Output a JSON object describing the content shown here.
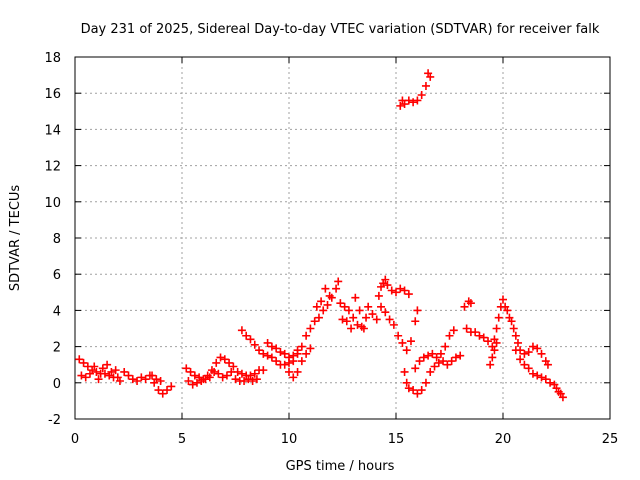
{
  "chart_data": {
    "type": "scatter",
    "title": "Day 231 of 2025, Sidereal Day-to-day VTEC variation (SDTVAR) for receiver falk",
    "xlabel": "GPS time / hours",
    "ylabel": "SDTVAR / TECUs",
    "xlim": [
      0,
      25
    ],
    "ylim": [
      -2,
      18
    ],
    "xticks": [
      0,
      5,
      10,
      15,
      20,
      25
    ],
    "yticks": [
      -2,
      0,
      2,
      4,
      6,
      8,
      10,
      12,
      14,
      16,
      18
    ],
    "grid": true,
    "marker": "plus",
    "color": "#ff0000",
    "series": [
      {
        "name": "SDTVAR",
        "points": [
          [
            0.2,
            1.3
          ],
          [
            0.4,
            1.1
          ],
          [
            0.6,
            0.9
          ],
          [
            0.8,
            0.7
          ],
          [
            1.0,
            0.6
          ],
          [
            1.2,
            0.5
          ],
          [
            1.4,
            0.5
          ],
          [
            1.6,
            0.4
          ],
          [
            1.8,
            0.3
          ],
          [
            2.0,
            0.3
          ],
          [
            0.3,
            0.4
          ],
          [
            0.5,
            0.3
          ],
          [
            0.7,
            0.5
          ],
          [
            0.9,
            0.9
          ],
          [
            1.1,
            0.2
          ],
          [
            1.3,
            0.8
          ],
          [
            1.5,
            1.0
          ],
          [
            1.7,
            0.6
          ],
          [
            1.9,
            0.7
          ],
          [
            2.1,
            0.1
          ],
          [
            2.3,
            0.6
          ],
          [
            2.5,
            0.4
          ],
          [
            2.7,
            0.2
          ],
          [
            2.9,
            0.1
          ],
          [
            3.1,
            0.3
          ],
          [
            3.3,
            0.2
          ],
          [
            3.5,
            0.4
          ],
          [
            3.7,
            0.0
          ],
          [
            3.9,
            -0.4
          ],
          [
            4.1,
            -0.6
          ],
          [
            4.3,
            -0.4
          ],
          [
            4.5,
            -0.2
          ],
          [
            3.6,
            0.4
          ],
          [
            3.8,
            0.2
          ],
          [
            4.0,
            0.1
          ],
          [
            5.2,
            0.8
          ],
          [
            5.4,
            0.6
          ],
          [
            5.6,
            0.4
          ],
          [
            5.8,
            0.3
          ],
          [
            6.0,
            0.2
          ],
          [
            6.2,
            0.4
          ],
          [
            6.4,
            0.7
          ],
          [
            6.6,
            1.1
          ],
          [
            6.8,
            1.4
          ],
          [
            7.0,
            1.3
          ],
          [
            7.2,
            1.1
          ],
          [
            7.4,
            0.9
          ],
          [
            7.6,
            0.6
          ],
          [
            7.8,
            0.5
          ],
          [
            8.0,
            0.4
          ],
          [
            8.2,
            0.4
          ],
          [
            8.4,
            0.5
          ],
          [
            8.6,
            0.7
          ],
          [
            8.8,
            0.7
          ],
          [
            5.3,
            0.1
          ],
          [
            5.5,
            -0.1
          ],
          [
            5.7,
            0.0
          ],
          [
            5.9,
            0.1
          ],
          [
            6.1,
            0.2
          ],
          [
            6.3,
            0.3
          ],
          [
            6.5,
            0.6
          ],
          [
            6.7,
            0.5
          ],
          [
            6.9,
            0.3
          ],
          [
            7.1,
            0.4
          ],
          [
            7.3,
            0.6
          ],
          [
            7.5,
            0.2
          ],
          [
            7.7,
            0.1
          ],
          [
            7.9,
            0.1
          ],
          [
            8.1,
            0.2
          ],
          [
            8.3,
            0.1
          ],
          [
            8.5,
            0.2
          ],
          [
            7.8,
            2.9
          ],
          [
            8.0,
            2.6
          ],
          [
            8.2,
            2.4
          ],
          [
            8.4,
            2.1
          ],
          [
            8.6,
            1.8
          ],
          [
            8.8,
            1.6
          ],
          [
            9.0,
            1.5
          ],
          [
            9.2,
            1.4
          ],
          [
            9.4,
            1.2
          ],
          [
            9.6,
            1.0
          ],
          [
            9.8,
            1.0
          ],
          [
            10.0,
            1.1
          ],
          [
            10.2,
            1.2
          ],
          [
            10.4,
            1.6
          ],
          [
            9.0,
            2.2
          ],
          [
            9.2,
            2.0
          ],
          [
            9.4,
            1.9
          ],
          [
            9.6,
            1.7
          ],
          [
            9.8,
            1.6
          ],
          [
            10.0,
            1.4
          ],
          [
            10.2,
            1.5
          ],
          [
            10.4,
            1.8
          ],
          [
            10.6,
            2.0
          ],
          [
            10.0,
            0.6
          ],
          [
            10.2,
            0.3
          ],
          [
            10.4,
            0.6
          ],
          [
            10.6,
            1.2
          ],
          [
            10.8,
            1.6
          ],
          [
            11.0,
            1.9
          ],
          [
            10.8,
            2.6
          ],
          [
            11.0,
            3.0
          ],
          [
            11.2,
            3.4
          ],
          [
            11.4,
            3.6
          ],
          [
            11.6,
            4.0
          ],
          [
            11.8,
            4.3
          ],
          [
            11.7,
            5.2
          ],
          [
            11.9,
            4.8
          ],
          [
            11.5,
            4.5
          ],
          [
            11.3,
            4.2
          ],
          [
            12.0,
            4.7
          ],
          [
            12.2,
            5.2
          ],
          [
            12.3,
            5.6
          ],
          [
            12.4,
            4.4
          ],
          [
            12.6,
            4.2
          ],
          [
            12.8,
            4.0
          ],
          [
            13.0,
            3.6
          ],
          [
            13.2,
            3.2
          ],
          [
            13.4,
            3.1
          ],
          [
            13.6,
            3.6
          ],
          [
            12.5,
            3.5
          ],
          [
            12.7,
            3.4
          ],
          [
            12.9,
            3.0
          ],
          [
            13.1,
            4.7
          ],
          [
            13.3,
            4.0
          ],
          [
            13.5,
            3.0
          ],
          [
            13.7,
            4.2
          ],
          [
            13.9,
            3.8
          ],
          [
            14.1,
            3.5
          ],
          [
            14.2,
            4.8
          ],
          [
            14.3,
            5.3
          ],
          [
            14.4,
            5.5
          ],
          [
            14.5,
            5.7
          ],
          [
            14.6,
            5.4
          ],
          [
            14.8,
            5.1
          ],
          [
            15.0,
            5.0
          ],
          [
            15.2,
            5.2
          ],
          [
            15.4,
            5.1
          ],
          [
            15.6,
            4.9
          ],
          [
            14.3,
            4.2
          ],
          [
            14.5,
            3.9
          ],
          [
            14.7,
            3.5
          ],
          [
            14.9,
            3.2
          ],
          [
            15.1,
            2.6
          ],
          [
            15.3,
            2.2
          ],
          [
            15.5,
            1.8
          ],
          [
            15.7,
            2.3
          ],
          [
            15.9,
            3.4
          ],
          [
            16.0,
            4.0
          ],
          [
            15.4,
            0.6
          ],
          [
            15.5,
            0.0
          ],
          [
            15.6,
            -0.3
          ],
          [
            15.8,
            -0.4
          ],
          [
            16.0,
            -0.6
          ],
          [
            16.2,
            -0.4
          ],
          [
            16.4,
            0.0
          ],
          [
            16.6,
            0.6
          ],
          [
            16.8,
            0.9
          ],
          [
            17.0,
            1.1
          ],
          [
            15.9,
            0.8
          ],
          [
            16.1,
            1.2
          ],
          [
            16.3,
            1.4
          ],
          [
            16.5,
            1.5
          ],
          [
            16.7,
            1.6
          ],
          [
            16.9,
            1.4
          ],
          [
            17.1,
            1.6
          ],
          [
            17.3,
            2.0
          ],
          [
            17.5,
            2.6
          ],
          [
            17.7,
            2.9
          ],
          [
            17.2,
            1.2
          ],
          [
            17.4,
            1.0
          ],
          [
            17.6,
            1.2
          ],
          [
            17.8,
            1.4
          ],
          [
            18.0,
            1.5
          ],
          [
            18.2,
            4.2
          ],
          [
            18.4,
            4.5
          ],
          [
            18.5,
            4.4
          ],
          [
            18.3,
            3.0
          ],
          [
            18.5,
            2.8
          ],
          [
            18.7,
            2.8
          ],
          [
            18.9,
            2.6
          ],
          [
            19.1,
            2.5
          ],
          [
            19.3,
            2.3
          ],
          [
            19.5,
            2.0
          ],
          [
            19.6,
            2.4
          ],
          [
            19.7,
            3.0
          ],
          [
            19.8,
            3.6
          ],
          [
            19.9,
            4.2
          ],
          [
            20.0,
            4.6
          ],
          [
            20.1,
            4.2
          ],
          [
            20.2,
            4.0
          ],
          [
            20.3,
            3.6
          ],
          [
            20.4,
            3.4
          ],
          [
            20.5,
            3.0
          ],
          [
            19.4,
            1.0
          ],
          [
            19.5,
            1.4
          ],
          [
            19.6,
            1.8
          ],
          [
            19.7,
            2.2
          ],
          [
            20.6,
            2.6
          ],
          [
            20.7,
            2.2
          ],
          [
            20.8,
            1.8
          ],
          [
            21.0,
            1.6
          ],
          [
            21.2,
            1.7
          ],
          [
            21.4,
            2.0
          ],
          [
            21.6,
            1.9
          ],
          [
            21.8,
            1.6
          ],
          [
            22.0,
            1.2
          ],
          [
            22.1,
            1.0
          ],
          [
            20.6,
            1.8
          ],
          [
            20.8,
            1.3
          ],
          [
            21.0,
            1.0
          ],
          [
            21.2,
            0.8
          ],
          [
            21.4,
            0.5
          ],
          [
            21.6,
            0.4
          ],
          [
            21.8,
            0.3
          ],
          [
            22.0,
            0.2
          ],
          [
            22.2,
            0.0
          ],
          [
            22.4,
            -0.1
          ],
          [
            22.5,
            -0.3
          ],
          [
            22.6,
            -0.5
          ],
          [
            22.7,
            -0.6
          ],
          [
            22.8,
            -0.8
          ],
          [
            15.2,
            15.3
          ],
          [
            15.4,
            15.4
          ],
          [
            15.6,
            15.6
          ],
          [
            15.8,
            15.5
          ],
          [
            16.0,
            15.6
          ],
          [
            16.2,
            15.9
          ],
          [
            16.4,
            16.4
          ],
          [
            16.6,
            16.9
          ],
          [
            15.3,
            15.6
          ],
          [
            16.5,
            17.1
          ]
        ]
      }
    ]
  }
}
